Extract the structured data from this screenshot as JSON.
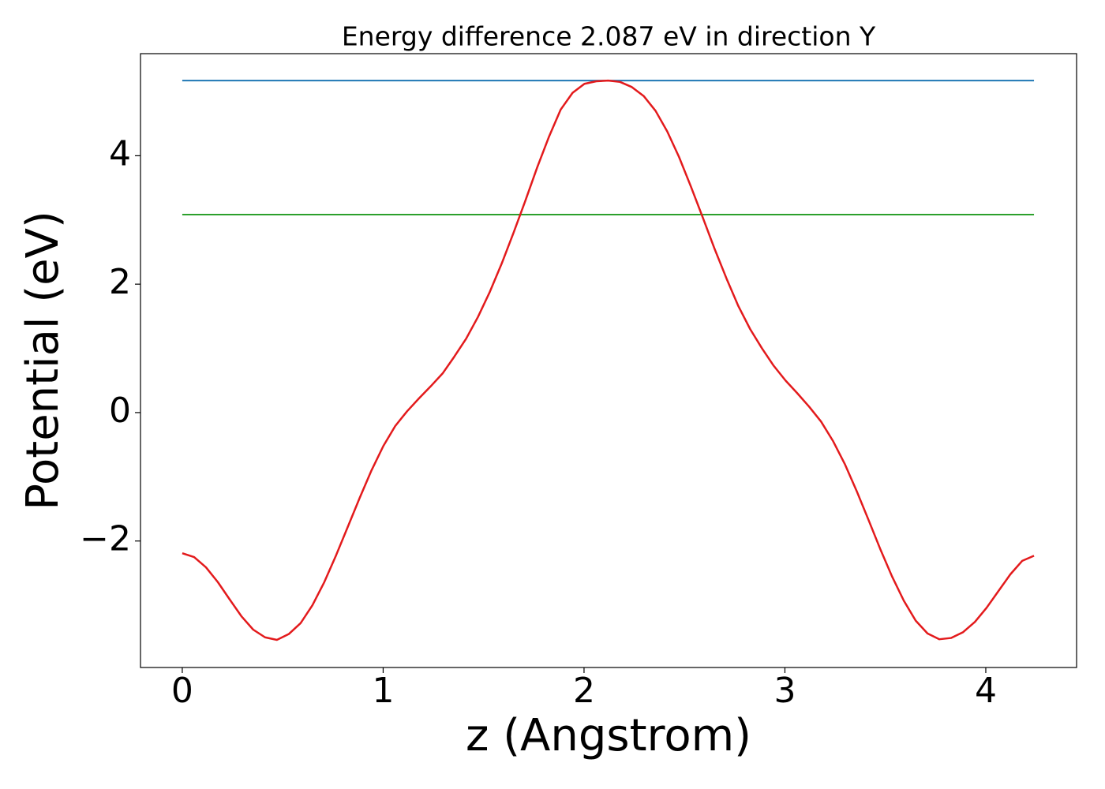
{
  "chart_data": {
    "type": "line",
    "title": "Energy difference 2.087 eV in direction Y",
    "xlabel": "z (Angstrom)",
    "ylabel": "Potential (eV)",
    "x": [
      0,
      0.059,
      0.118,
      0.177,
      0.236,
      0.294,
      0.353,
      0.412,
      0.471,
      0.53,
      0.589,
      0.648,
      0.707,
      0.766,
      0.824,
      0.883,
      0.942,
      1.001,
      1.06,
      1.119,
      1.178,
      1.237,
      1.296,
      1.354,
      1.413,
      1.472,
      1.531,
      1.59,
      1.649,
      1.708,
      1.767,
      1.826,
      1.884,
      1.943,
      2.002,
      2.061,
      2.12,
      2.179,
      2.238,
      2.297,
      2.356,
      2.414,
      2.473,
      2.532,
      2.591,
      2.65,
      2.709,
      2.768,
      2.827,
      2.886,
      2.944,
      3.003,
      3.062,
      3.121,
      3.18,
      3.239,
      3.298,
      3.357,
      3.416,
      3.474,
      3.533,
      3.592,
      3.651,
      3.71,
      3.769,
      3.828,
      3.887,
      3.946,
      4.004,
      4.063,
      4.122,
      4.181,
      4.24
    ],
    "series": [
      {
        "color": "#e31a1c",
        "values": [
          -2.19,
          -2.25,
          -2.41,
          -2.64,
          -2.91,
          -3.17,
          -3.38,
          -3.5,
          -3.54,
          -3.45,
          -3.28,
          -3.0,
          -2.64,
          -2.22,
          -1.78,
          -1.33,
          -0.9,
          -0.52,
          -0.21,
          0.02,
          0.22,
          0.41,
          0.61,
          0.87,
          1.15,
          1.49,
          1.88,
          2.32,
          2.8,
          3.3,
          3.82,
          4.3,
          4.72,
          4.98,
          5.12,
          5.16,
          5.17,
          5.15,
          5.07,
          4.93,
          4.7,
          4.38,
          3.98,
          3.52,
          3.04,
          2.55,
          2.09,
          1.66,
          1.3,
          1.0,
          0.73,
          0.5,
          0.3,
          0.09,
          -0.14,
          -0.44,
          -0.8,
          -1.22,
          -1.67,
          -2.12,
          -2.55,
          -2.93,
          -3.24,
          -3.44,
          -3.53,
          -3.51,
          -3.42,
          -3.26,
          -3.04,
          -2.78,
          -2.52,
          -2.31,
          -2.23
        ]
      }
    ],
    "hlines": [
      {
        "value": 5.17,
        "color": "#1f77b4",
        "xmin": 0,
        "xmax": 4.24
      },
      {
        "value": 3.083,
        "color": "#2ca02c",
        "xmin": 0,
        "xmax": 4.24
      }
    ],
    "xlim": [
      -0.208,
      4.452
    ],
    "ylim": [
      -3.97,
      5.59
    ],
    "xticks": [
      0,
      1,
      2,
      3,
      4
    ],
    "yticks": [
      {
        "value": -2,
        "label": "−2"
      },
      0,
      2,
      4
    ],
    "grid": false
  }
}
